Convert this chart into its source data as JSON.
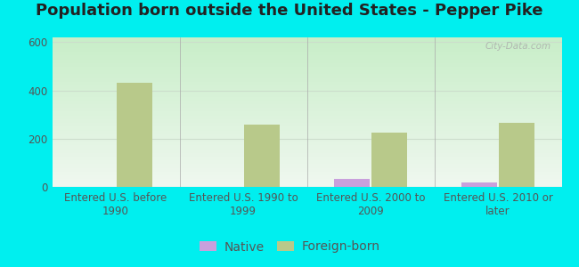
{
  "title": "Population born outside the United States - Pepper Pike",
  "categories": [
    "Entered U.S. before\n1990",
    "Entered U.S. 1990 to\n1999",
    "Entered U.S. 2000 to\n2009",
    "Entered U.S. 2010 or\nlater"
  ],
  "native_values": [
    0,
    0,
    35,
    20
  ],
  "foreign_values": [
    432,
    260,
    225,
    265
  ],
  "native_color": "#c9a0dc",
  "foreign_color": "#b8c98a",
  "outer_background": "#00efef",
  "ylim": [
    0,
    620
  ],
  "yticks": [
    0,
    200,
    400,
    600
  ],
  "bar_width": 0.28,
  "title_fontsize": 13,
  "tick_fontsize": 8.5,
  "legend_fontsize": 10,
  "watermark_text": "City-Data.com",
  "grid_color": "#ccddcc",
  "axis_label_color": "#555555",
  "bg_color_top": "#f0f8f0",
  "bg_color_bottom": "#c8eec8"
}
